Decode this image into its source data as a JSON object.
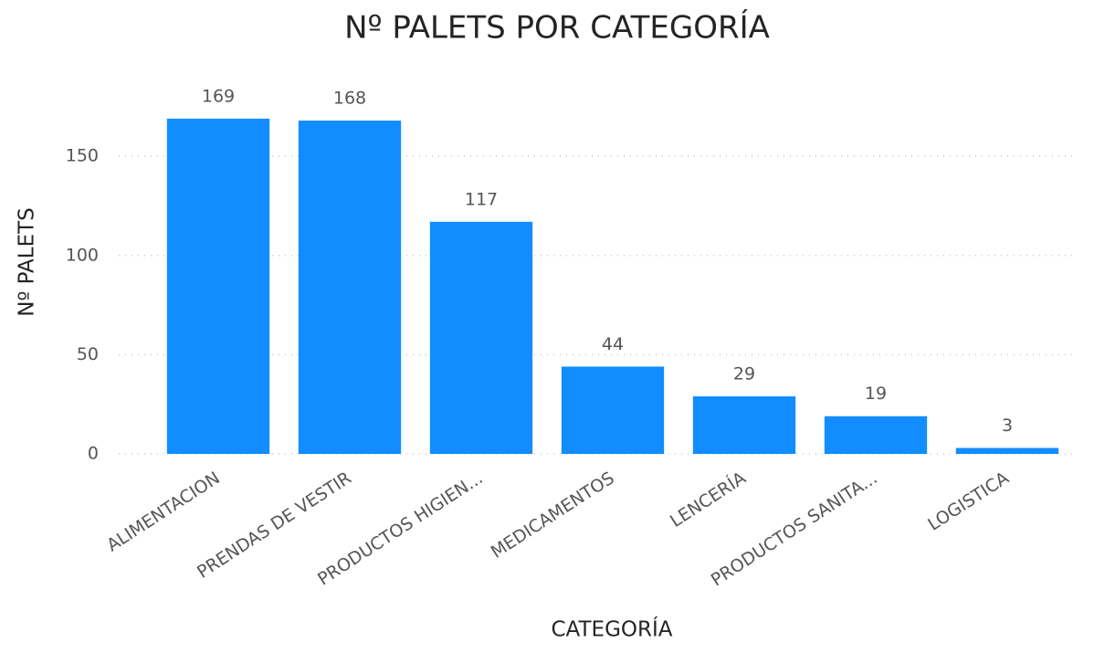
{
  "chart_data": {
    "type": "bar",
    "title": "Nº PALETS POR CATEGORÍA",
    "x_label": "CATEGORÍA",
    "y_label": "Nº PALETS",
    "categories": [
      "ALIMENTACION",
      "PRENDAS DE VESTIR",
      "PRODUCTOS HIGIEN...",
      "MEDICAMENTOS",
      "LENCERÍA",
      "PRODUCTOS SANITA...",
      "LOGISTICA"
    ],
    "values": [
      169,
      168,
      117,
      44,
      29,
      19,
      3
    ],
    "color": "#118dff",
    "ylim": [
      0,
      180
    ],
    "yticks": [
      0,
      50,
      100,
      150
    ],
    "grid": true
  }
}
